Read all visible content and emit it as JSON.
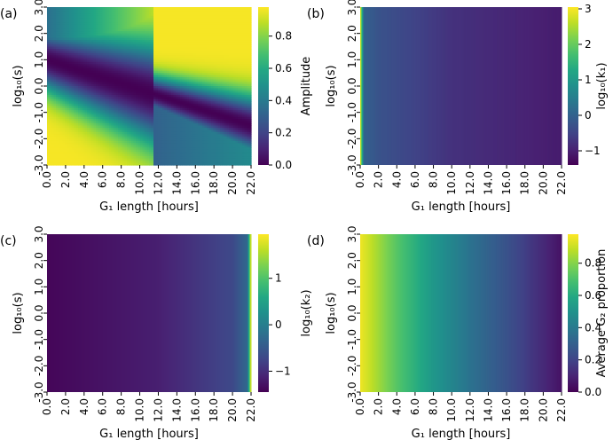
{
  "chart_data": [
    {
      "id": "a",
      "type": "heatmap",
      "panel_label": "(a)",
      "xlabel": "G₁ length [hours]",
      "ylabel": "log₁₀(s)",
      "x_ticks": [
        "0.0",
        "2.0",
        "4.0",
        "6.0",
        "8.0",
        "10.0",
        "12.0",
        "14.0",
        "16.0",
        "18.0",
        "20.0",
        "22.0"
      ],
      "y_ticks": [
        "3.0",
        "2.0",
        "1.0",
        "0.0",
        "-1.0",
        "-2.0",
        "-3.0"
      ],
      "x_range": [
        0,
        22
      ],
      "y_range": [
        -3,
        3
      ],
      "colorbar_label": "Amplitude",
      "colorbar_ticks": [
        "0.0",
        "0.2",
        "0.4",
        "0.6",
        "0.8"
      ],
      "colorbar_range": [
        0,
        0.98
      ],
      "pattern": "high amplitude at top-right (G1 > ~11 h, s > 10^1) and bottom-left (G1 < ~11 h, s < 10^-1), low along a diagonal valley from (0, 1.0) to (22, -1.5)"
    },
    {
      "id": "b",
      "type": "heatmap",
      "panel_label": "(b)",
      "xlabel": "G₁ length [hours]",
      "ylabel": "log₁₀(s)",
      "x_ticks": [
        "0.0",
        "2.0",
        "4.0",
        "6.0",
        "8.0",
        "10.0",
        "12.0",
        "14.0",
        "16.0",
        "18.0",
        "20.0",
        "22.0"
      ],
      "y_ticks": [
        "3.0",
        "2.0",
        "1.0",
        "0.0",
        "-1.0",
        "-2.0",
        "-3.0"
      ],
      "x_range": [
        0,
        22
      ],
      "y_range": [
        -3,
        3
      ],
      "colorbar_label": "log₁₀(k₁)",
      "colorbar_ticks": [
        "−1",
        "0",
        "1",
        "2",
        "3"
      ],
      "colorbar_range": [
        -1.4,
        3.05
      ],
      "column_values": [
        {
          "x": 0.0,
          "v": 3.0
        },
        {
          "x": 0.4,
          "v": 0.0
        },
        {
          "x": 2.0,
          "v": -0.25
        },
        {
          "x": 10.0,
          "v": -0.75
        },
        {
          "x": 22.0,
          "v": -1.05
        }
      ]
    },
    {
      "id": "c",
      "type": "heatmap",
      "panel_label": "(c)",
      "xlabel": "G₁ length [hours]",
      "ylabel": "log₁₀(s)",
      "x_ticks": [
        "0.0",
        "2.0",
        "4.0",
        "6.0",
        "8.0",
        "10.0",
        "12.0",
        "14.0",
        "16.0",
        "18.0",
        "20.0",
        "22.0"
      ],
      "y_ticks": [
        "3.0",
        "2.0",
        "1.0",
        "0.0",
        "-1.0",
        "-2.0",
        "-3.0"
      ],
      "x_range": [
        0,
        22
      ],
      "y_range": [
        -3,
        3
      ],
      "colorbar_label": "log₁₀(k₂)",
      "colorbar_ticks": [
        "−1",
        "0",
        "1"
      ],
      "colorbar_range": [
        -1.45,
        1.95
      ],
      "column_values": [
        {
          "x": 0.0,
          "v": -1.4
        },
        {
          "x": 12.0,
          "v": -1.15
        },
        {
          "x": 20.0,
          "v": -0.7
        },
        {
          "x": 21.6,
          "v": -0.3
        },
        {
          "x": 22.0,
          "v": 1.9
        }
      ]
    },
    {
      "id": "d",
      "type": "heatmap",
      "panel_label": "(d)",
      "xlabel": "G₁ length [hours]",
      "ylabel": "log₁₀(s)",
      "x_ticks": [
        "0.0",
        "2.0",
        "4.0",
        "6.0",
        "8.0",
        "10.0",
        "12.0",
        "14.0",
        "16.0",
        "18.0",
        "20.0",
        "22.0"
      ],
      "y_ticks": [
        "3.0",
        "2.0",
        "1.0",
        "0.0",
        "-1.0",
        "-2.0",
        "-3.0"
      ],
      "x_range": [
        0,
        22
      ],
      "y_range": [
        -3,
        3
      ],
      "colorbar_label": "Average G₂ proportion",
      "colorbar_ticks": [
        "0.0",
        "0.2",
        "0.4",
        "0.6",
        "0.8"
      ],
      "colorbar_range": [
        0,
        0.98
      ],
      "column_values": [
        {
          "x": 0.0,
          "v": 0.96
        },
        {
          "x": 4.0,
          "v": 0.72
        },
        {
          "x": 8.0,
          "v": 0.52
        },
        {
          "x": 12.0,
          "v": 0.37
        },
        {
          "x": 16.0,
          "v": 0.25
        },
        {
          "x": 22.0,
          "v": 0.05
        }
      ]
    }
  ]
}
